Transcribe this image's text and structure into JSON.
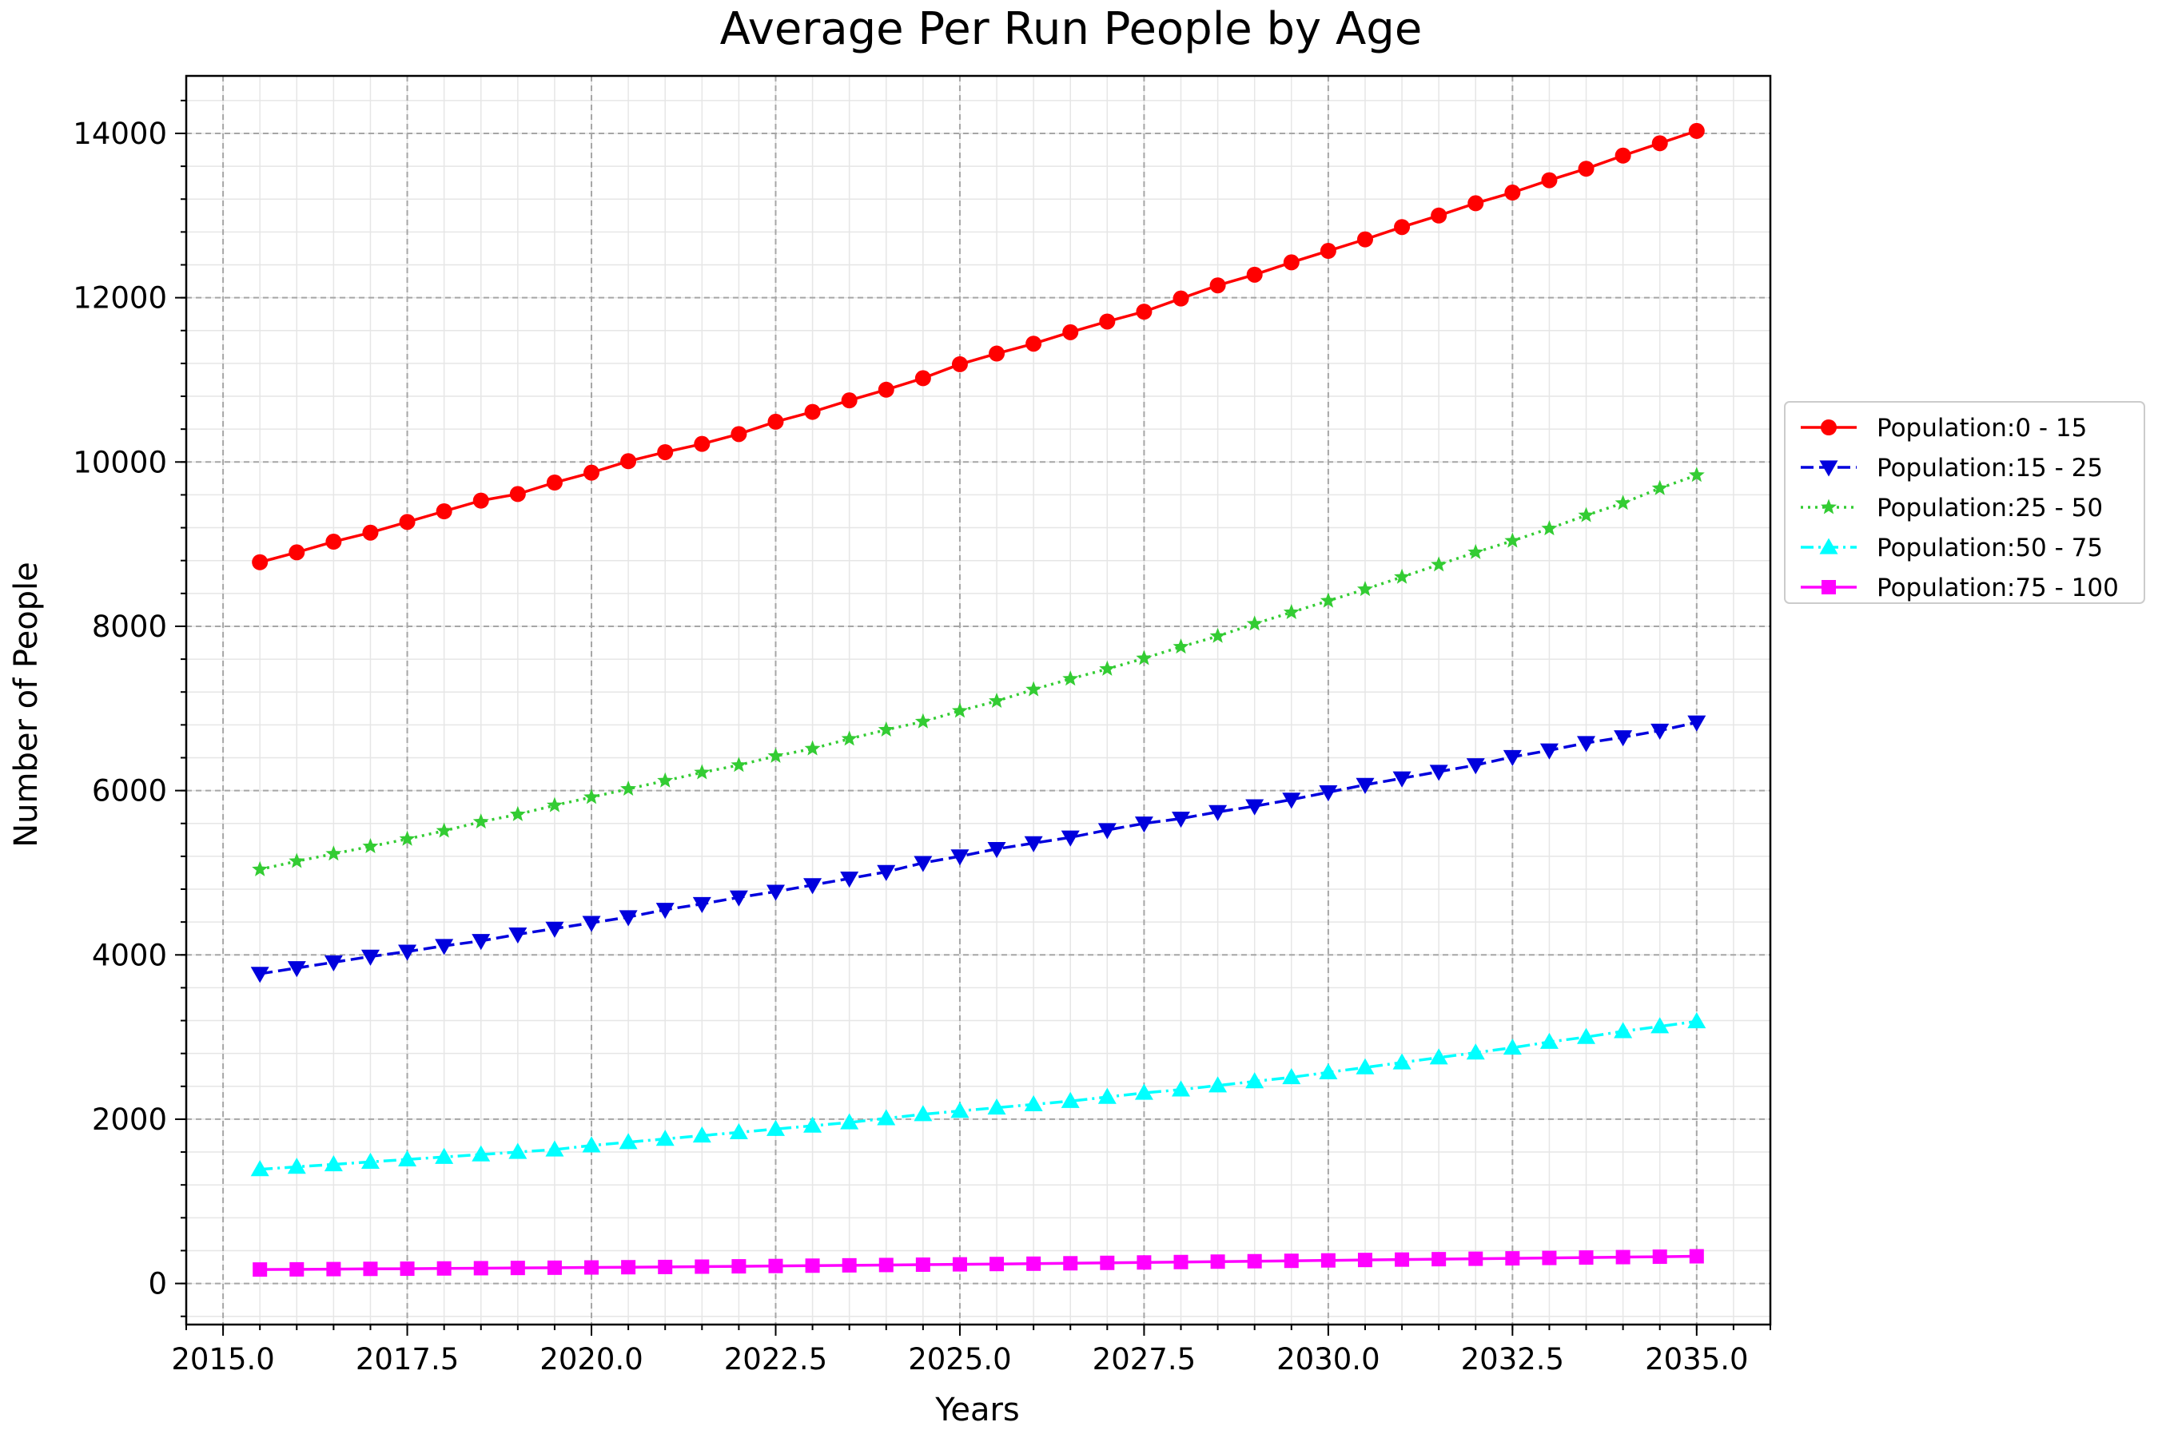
{
  "chart_data": {
    "type": "line",
    "title": "Average Per Run People by Age",
    "xlabel": "Years",
    "ylabel": "Number of People",
    "xlim": [
      2014.5,
      2036.0
    ],
    "ylim": [
      -500,
      14700
    ],
    "xticks": [
      2015.0,
      2017.5,
      2020.0,
      2022.5,
      2025.0,
      2027.5,
      2030.0,
      2032.5,
      2035.0
    ],
    "xtick_labels": [
      "2015.0",
      "2017.5",
      "2020.0",
      "2022.5",
      "2025.0",
      "2027.5",
      "2030.0",
      "2032.5",
      "2035.0"
    ],
    "yticks": [
      0,
      2000,
      4000,
      6000,
      8000,
      10000,
      12000,
      14000
    ],
    "ytick_labels": [
      "0",
      "2000",
      "4000",
      "6000",
      "8000",
      "10000",
      "12000",
      "14000"
    ],
    "grid": true,
    "legend_position": "outside-right",
    "x": [
      2015.5,
      2016.0,
      2016.5,
      2017.0,
      2017.5,
      2018.0,
      2018.5,
      2019.0,
      2019.5,
      2020.0,
      2020.5,
      2021.0,
      2021.5,
      2022.0,
      2022.5,
      2023.0,
      2023.5,
      2024.0,
      2024.5,
      2025.0,
      2025.5,
      2026.0,
      2026.5,
      2027.0,
      2027.5,
      2028.0,
      2028.5,
      2029.0,
      2029.5,
      2030.0,
      2030.5,
      2031.0,
      2031.5,
      2032.0,
      2032.5,
      2033.0,
      2033.5,
      2034.0,
      2034.5,
      2035.0
    ],
    "series": [
      {
        "name": "Population:0 - 15",
        "color": "#ff0000",
        "linestyle": "solid",
        "marker": "circle",
        "values": [
          8780,
          8900,
          9030,
          9140,
          9270,
          9400,
          9530,
          9610,
          9750,
          9870,
          10010,
          10120,
          10220,
          10340,
          10490,
          10610,
          10750,
          10880,
          11020,
          11190,
          11320,
          11440,
          11580,
          11710,
          11830,
          11990,
          12150,
          12280,
          12430,
          12570,
          12710,
          12860,
          13000,
          13150,
          13280,
          13430,
          13570,
          13730,
          13880,
          14030
        ]
      },
      {
        "name": "Population:15 - 25",
        "color": "#0000dd",
        "linestyle": "dashed",
        "marker": "triangle-down",
        "values": [
          3770,
          3840,
          3910,
          3980,
          4040,
          4110,
          4170,
          4250,
          4320,
          4390,
          4460,
          4550,
          4620,
          4700,
          4770,
          4850,
          4930,
          5010,
          5120,
          5200,
          5290,
          5360,
          5430,
          5520,
          5600,
          5660,
          5740,
          5810,
          5890,
          5980,
          6070,
          6150,
          6230,
          6310,
          6410,
          6490,
          6580,
          6650,
          6730,
          6830
        ]
      },
      {
        "name": "Population:25 - 50",
        "color": "#33cc33",
        "linestyle": "dotted",
        "marker": "star",
        "values": [
          5040,
          5140,
          5230,
          5320,
          5410,
          5510,
          5620,
          5710,
          5820,
          5920,
          6020,
          6120,
          6220,
          6310,
          6420,
          6510,
          6630,
          6740,
          6840,
          6970,
          7090,
          7230,
          7360,
          7480,
          7610,
          7750,
          7880,
          8030,
          8170,
          8310,
          8450,
          8600,
          8750,
          8900,
          9040,
          9190,
          9350,
          9500,
          9680,
          9840
        ]
      },
      {
        "name": "Population:50 - 75",
        "color": "#00ffff",
        "linestyle": "dashdot",
        "marker": "triangle-up",
        "values": [
          1390,
          1420,
          1450,
          1480,
          1510,
          1540,
          1570,
          1600,
          1630,
          1680,
          1720,
          1760,
          1800,
          1840,
          1880,
          1920,
          1960,
          2010,
          2060,
          2100,
          2140,
          2180,
          2220,
          2270,
          2320,
          2360,
          2410,
          2460,
          2510,
          2570,
          2630,
          2690,
          2750,
          2810,
          2870,
          2940,
          3000,
          3070,
          3130,
          3190
        ]
      },
      {
        "name": "Population:75 - 100",
        "color": "#ff00ff",
        "linestyle": "solid",
        "marker": "square",
        "values": [
          170,
          172,
          175,
          178,
          180,
          183,
          186,
          189,
          192,
          195,
          198,
          201,
          205,
          209,
          213,
          217,
          221,
          225,
          229,
          233,
          237,
          241,
          246,
          251,
          256,
          261,
          266,
          271,
          276,
          281,
          286,
          291,
          296,
          301,
          306,
          311,
          316,
          321,
          326,
          331
        ]
      }
    ]
  }
}
